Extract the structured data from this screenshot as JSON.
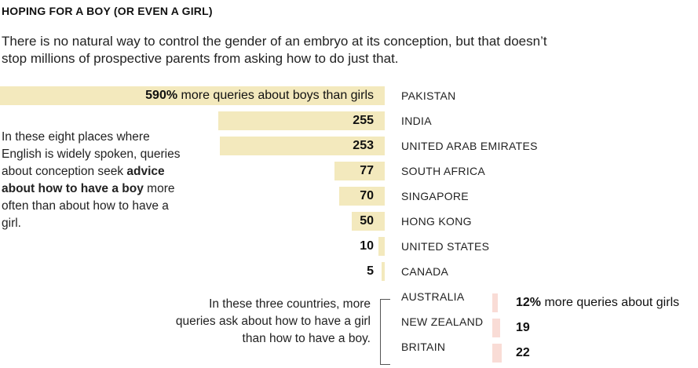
{
  "title": "HOPING FOR A BOY (OR EVEN A GIRL)",
  "subtitle": "There is no natural way to control the gender of an embryo at its conception, but that doesn’t stop millions of prospective parents from asking how to do just that.",
  "note_left": {
    "part1": "In these eight places where English is widely spoken, queries about conception seek ",
    "bold": "advice about how to have a boy",
    "part2": " more often than about how to have a girl."
  },
  "note_right": "In these three countries, more queries ask about how to have a girl than how to have a boy.",
  "colors": {
    "boy": "#f3e9bd",
    "girl": "#f9dcd6"
  },
  "chart_data": {
    "type": "bar",
    "title": "HOPING FOR A BOY (OR EVEN A GIRL)",
    "unit": "% more queries",
    "boy_series": {
      "name": "more queries about boys than girls",
      "categories": [
        "PAKISTAN",
        "INDIA",
        "UNITED ARAB EMIRATES",
        "SOUTH AFRICA",
        "SINGAPORE",
        "HONG KONG",
        "UNITED STATES",
        "CANADA"
      ],
      "values": [
        590,
        255,
        253,
        77,
        70,
        50,
        10,
        5
      ],
      "first_label_suffix": "% more queries about boys than girls"
    },
    "girl_series": {
      "name": "more queries about girls",
      "categories": [
        "AUSTRALIA",
        "NEW ZEALAND",
        "BRITAIN"
      ],
      "values": [
        12,
        19,
        22
      ],
      "first_label_suffix": "% more queries about girls"
    }
  }
}
